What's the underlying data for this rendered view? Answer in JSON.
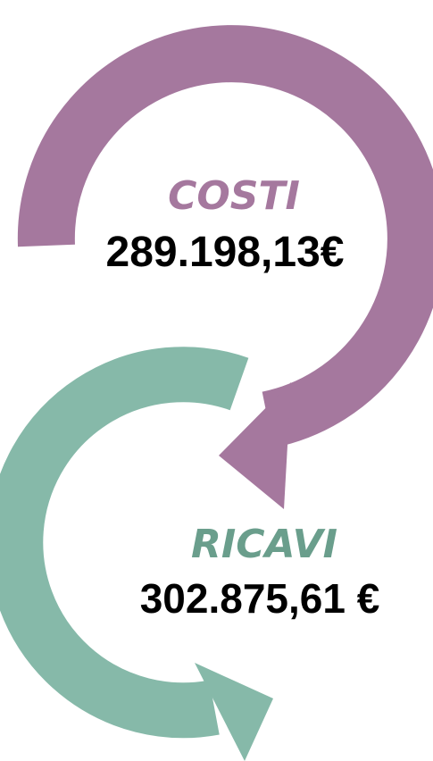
{
  "costs": {
    "label": "COSTI",
    "amount": "289.198,13€"
  },
  "revenues": {
    "label": "RICAVI",
    "amount": "302.875,61 €"
  }
}
